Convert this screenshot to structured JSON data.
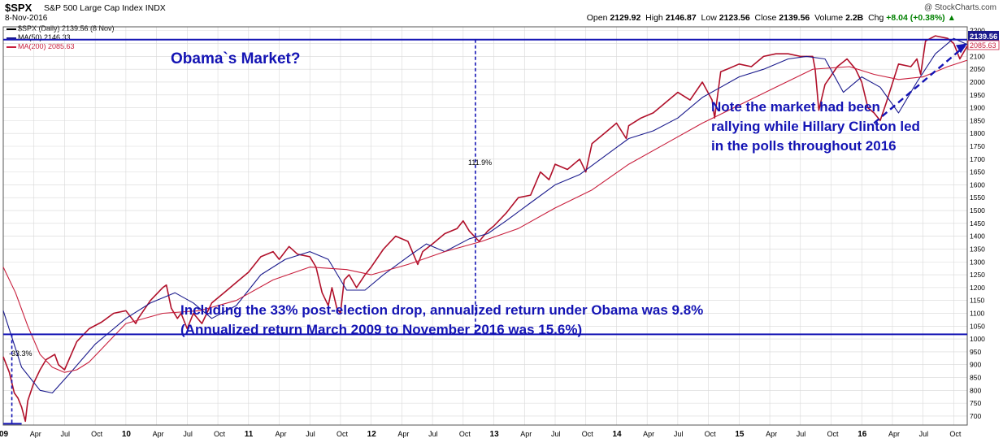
{
  "header": {
    "symbol": "$SPX",
    "index_name": "S&P 500 Large Cap Index  INDX",
    "date": "8-Nov-2016",
    "ohlc": {
      "open_label": "Open",
      "open": "2129.92",
      "high_label": "High",
      "high": "2146.87",
      "low_label": "Low",
      "low": "2123.56",
      "close_label": "Close",
      "close": "2139.56",
      "volume_label": "Volume",
      "volume": "2.2B",
      "chg_label": "Chg",
      "chg": "+8.04 (+0.38%)",
      "chg_arrow": "▲"
    },
    "credit": "@ StockCharts.com"
  },
  "legend": [
    {
      "label": "$SPX (Daily) 2139.56 (8 Nov)",
      "color": "#b0102a"
    },
    {
      "label": "MA(50) 2146.33",
      "color": "#1a1a8c"
    },
    {
      "label": "MA(200) 2085.63",
      "color": "#c81e3c"
    }
  ],
  "colors": {
    "price": "#b0102a",
    "ma50": "#1a1a8c",
    "ma200": "#c81e3c",
    "annotation": "#1414b4",
    "grid": "#d8d8d8"
  },
  "chart_data": {
    "type": "line",
    "title": "$SPX S&P 500 Large Cap Index",
    "ylim": [
      665,
      2215
    ],
    "xlim": [
      2009.0,
      2016.86
    ],
    "yticks": [
      700,
      750,
      800,
      850,
      900,
      950,
      1000,
      1050,
      1100,
      1150,
      1200,
      1250,
      1300,
      1350,
      1400,
      1450,
      1500,
      1550,
      1600,
      1650,
      1700,
      1750,
      1800,
      1850,
      1900,
      1950,
      2000,
      2050,
      2100,
      2150,
      2200
    ],
    "xticks": [
      {
        "x": 2009.0,
        "label": "09",
        "bold": true
      },
      {
        "x": 2009.25,
        "label": "Apr"
      },
      {
        "x": 2009.5,
        "label": "Jul"
      },
      {
        "x": 2009.75,
        "label": "Oct"
      },
      {
        "x": 2010.0,
        "label": "10",
        "bold": true
      },
      {
        "x": 2010.25,
        "label": "Apr"
      },
      {
        "x": 2010.5,
        "label": "Jul"
      },
      {
        "x": 2010.75,
        "label": "Oct"
      },
      {
        "x": 2011.0,
        "label": "11",
        "bold": true
      },
      {
        "x": 2011.25,
        "label": "Apr"
      },
      {
        "x": 2011.5,
        "label": "Jul"
      },
      {
        "x": 2011.75,
        "label": "Oct"
      },
      {
        "x": 2012.0,
        "label": "12",
        "bold": true
      },
      {
        "x": 2012.25,
        "label": "Apr"
      },
      {
        "x": 2012.5,
        "label": "Jul"
      },
      {
        "x": 2012.75,
        "label": "Oct"
      },
      {
        "x": 2013.0,
        "label": "13",
        "bold": true
      },
      {
        "x": 2013.25,
        "label": "Apr"
      },
      {
        "x": 2013.5,
        "label": "Jul"
      },
      {
        "x": 2013.75,
        "label": "Oct"
      },
      {
        "x": 2014.0,
        "label": "14",
        "bold": true
      },
      {
        "x": 2014.25,
        "label": "Apr"
      },
      {
        "x": 2014.5,
        "label": "Jul"
      },
      {
        "x": 2014.75,
        "label": "Oct"
      },
      {
        "x": 2015.0,
        "label": "15",
        "bold": true
      },
      {
        "x": 2015.25,
        "label": "Apr"
      },
      {
        "x": 2015.5,
        "label": "Jul"
      },
      {
        "x": 2015.75,
        "label": "Oct"
      },
      {
        "x": 2016.0,
        "label": "16",
        "bold": true
      },
      {
        "x": 2016.25,
        "label": "Apr"
      },
      {
        "x": 2016.5,
        "label": "Jul"
      },
      {
        "x": 2016.75,
        "label": "Oct"
      }
    ],
    "series": [
      {
        "name": "$SPX (Daily)",
        "x": [
          2009.0,
          2009.05,
          2009.09,
          2009.12,
          2009.15,
          2009.18,
          2009.2,
          2009.25,
          2009.3,
          2009.35,
          2009.42,
          2009.45,
          2009.5,
          2009.6,
          2009.7,
          2009.8,
          2009.9,
          2010.0,
          2010.08,
          2010.1,
          2010.2,
          2010.3,
          2010.33,
          2010.37,
          2010.42,
          2010.45,
          2010.5,
          2010.55,
          2010.62,
          2010.7,
          2010.8,
          2010.9,
          2011.0,
          2011.1,
          2011.2,
          2011.25,
          2011.33,
          2011.4,
          2011.5,
          2011.55,
          2011.6,
          2011.65,
          2011.68,
          2011.72,
          2011.75,
          2011.78,
          2011.82,
          2011.88,
          2011.95,
          2012.0,
          2012.1,
          2012.2,
          2012.3,
          2012.38,
          2012.42,
          2012.5,
          2012.6,
          2012.7,
          2012.75,
          2012.8,
          2012.88,
          2012.95,
          2013.0,
          2013.1,
          2013.2,
          2013.3,
          2013.38,
          2013.45,
          2013.5,
          2013.6,
          2013.7,
          2013.75,
          2013.8,
          2013.9,
          2014.0,
          2014.08,
          2014.1,
          2014.2,
          2014.3,
          2014.4,
          2014.5,
          2014.6,
          2014.7,
          2014.78,
          2014.8,
          2014.85,
          2014.9,
          2015.0,
          2015.1,
          2015.2,
          2015.3,
          2015.4,
          2015.5,
          2015.6,
          2015.62,
          2015.65,
          2015.7,
          2015.8,
          2015.88,
          2015.95,
          2016.0,
          2016.05,
          2016.1,
          2016.15,
          2016.2,
          2016.3,
          2016.4,
          2016.45,
          2016.48,
          2016.52,
          2016.6,
          2016.7,
          2016.75,
          2016.8,
          2016.86
        ],
        "values": [
          931,
          870,
          790,
          770,
          735,
          680,
          760,
          830,
          880,
          920,
          940,
          900,
          880,
          990,
          1040,
          1065,
          1100,
          1110,
          1060,
          1080,
          1150,
          1200,
          1210,
          1120,
          1080,
          1100,
          1040,
          1100,
          1060,
          1140,
          1180,
          1220,
          1260,
          1320,
          1340,
          1310,
          1360,
          1330,
          1320,
          1280,
          1180,
          1130,
          1200,
          1120,
          1100,
          1230,
          1250,
          1200,
          1250,
          1280,
          1350,
          1400,
          1380,
          1290,
          1340,
          1370,
          1410,
          1430,
          1460,
          1420,
          1380,
          1420,
          1440,
          1490,
          1550,
          1560,
          1650,
          1620,
          1680,
          1660,
          1700,
          1650,
          1760,
          1800,
          1840,
          1780,
          1830,
          1860,
          1880,
          1920,
          1960,
          1930,
          2000,
          1930,
          1860,
          2040,
          2050,
          2070,
          2060,
          2100,
          2110,
          2110,
          2100,
          2100,
          2050,
          1890,
          1990,
          2060,
          2090,
          2050,
          2000,
          1900,
          1880,
          1850,
          1920,
          2070,
          2060,
          2090,
          2030,
          2160,
          2180,
          2170,
          2150,
          2090,
          2140
        ],
        "color": "#b0102a"
      },
      {
        "name": "MA(50)",
        "x": [
          2009.0,
          2009.15,
          2009.3,
          2009.4,
          2009.55,
          2009.75,
          2010.0,
          2010.2,
          2010.4,
          2010.55,
          2010.7,
          2010.9,
          2011.1,
          2011.3,
          2011.5,
          2011.65,
          2011.8,
          2011.95,
          2012.1,
          2012.3,
          2012.45,
          2012.6,
          2012.8,
          2012.95,
          2013.1,
          2013.3,
          2013.5,
          2013.7,
          2013.9,
          2014.1,
          2014.3,
          2014.5,
          2014.7,
          2014.85,
          2015.0,
          2015.2,
          2015.4,
          2015.55,
          2015.7,
          2015.85,
          2016.0,
          2016.15,
          2016.3,
          2016.45,
          2016.6,
          2016.75,
          2016.86
        ],
        "values": [
          1110,
          890,
          800,
          790,
          870,
          980,
          1080,
          1140,
          1180,
          1140,
          1080,
          1130,
          1250,
          1310,
          1340,
          1310,
          1190,
          1190,
          1250,
          1320,
          1370,
          1340,
          1390,
          1410,
          1460,
          1530,
          1600,
          1640,
          1710,
          1780,
          1810,
          1860,
          1940,
          1980,
          2020,
          2050,
          2090,
          2100,
          2090,
          1960,
          2020,
          1980,
          1880,
          2000,
          2110,
          2170,
          2146
        ]
      },
      {
        "name": "MA(200)",
        "x": [
          2009.0,
          2009.1,
          2009.2,
          2009.3,
          2009.4,
          2009.5,
          2009.6,
          2009.7,
          2009.8,
          2009.9,
          2010.0,
          2010.3,
          2010.6,
          2010.9,
          2011.2,
          2011.5,
          2011.8,
          2012.0,
          2012.3,
          2012.6,
          2012.9,
          2013.2,
          2013.5,
          2013.8,
          2014.1,
          2014.4,
          2014.7,
          2015.0,
          2015.3,
          2015.6,
          2015.9,
          2016.1,
          2016.3,
          2016.5,
          2016.7,
          2016.86
        ],
        "values": [
          1280,
          1180,
          1050,
          940,
          890,
          870,
          880,
          910,
          960,
          1010,
          1060,
          1100,
          1110,
          1150,
          1230,
          1280,
          1270,
          1250,
          1290,
          1340,
          1380,
          1430,
          1510,
          1580,
          1680,
          1760,
          1840,
          1910,
          1980,
          2050,
          2060,
          2030,
          2010,
          2020,
          2060,
          2085
        ]
      }
    ],
    "labels": {
      "peak_pct": "111.9%",
      "drop_pct": "-33.3%",
      "price_tag": "2139.56",
      "ma200_tag": "2085.63"
    }
  },
  "annotations": {
    "title": "Obama`s Market?",
    "note_line1": "Note the market had been",
    "note_line2": "rallying while Hillary Clinton led",
    "note_line3": "in the polls throughout 2016",
    "return_line1": "Including the 33% post-election drop, annualized return under Obama was 9.8%",
    "return_line2": "(Annualized return March 2009 to November 2016 was 15.6%)"
  }
}
